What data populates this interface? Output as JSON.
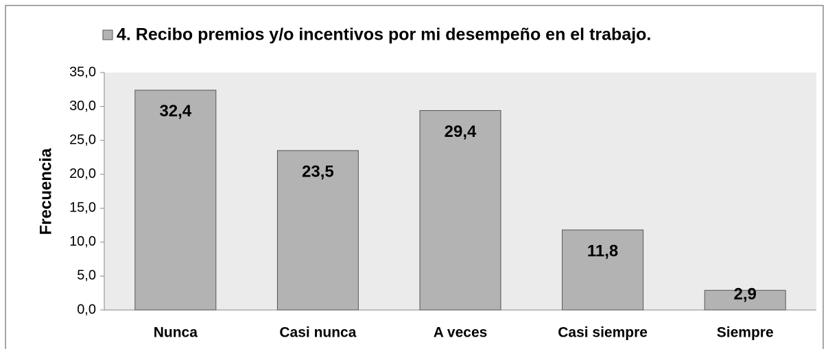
{
  "chart_data": {
    "type": "bar",
    "categories": [
      "Nunca",
      "Casi nunca",
      "A veces",
      "Casi siempre",
      "Siempre"
    ],
    "series": [
      {
        "name": "4. Recibo premios y/o incentivos por mi desempeño en el trabajo.",
        "color": "#b3b3b3",
        "values": [
          32.4,
          23.5,
          29.4,
          11.8,
          2.9
        ],
        "value_labels": [
          "32,4",
          "23,5",
          "29,4",
          "11,8",
          "2,9"
        ]
      }
    ],
    "y_label": "Frecuencia",
    "ylim": [
      0,
      35
    ],
    "yticks": [
      {
        "value": 0,
        "label": "0,0"
      },
      {
        "value": 5,
        "label": "5,0"
      },
      {
        "value": 10,
        "label": "10,0"
      },
      {
        "value": 15,
        "label": "15,0"
      },
      {
        "value": 20,
        "label": "20,0"
      },
      {
        "value": 25,
        "label": "25,0"
      },
      {
        "value": 30,
        "label": "30,0"
      },
      {
        "value": 35,
        "label": "35,0"
      }
    ],
    "legend": "top"
  }
}
